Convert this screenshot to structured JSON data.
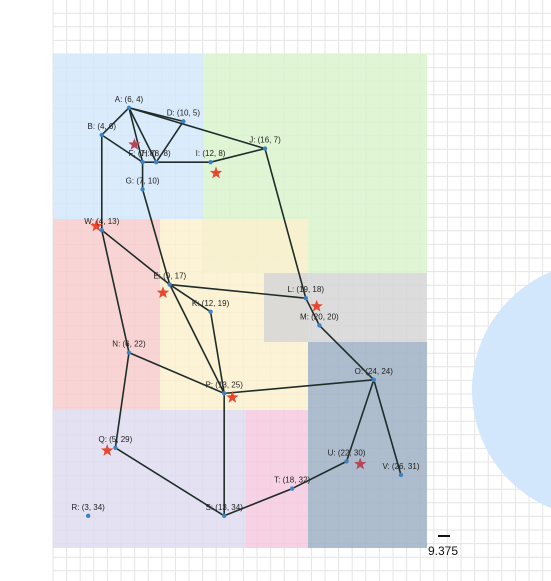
{
  "colors": {
    "grid": "#e4e4e4",
    "edge": "#1f2d2a",
    "node": "#3b82c4",
    "star_red": "#e8482f",
    "star_dark": "#b5475a",
    "region_blue": "#d4e8fb",
    "region_green": "#d9f3cc",
    "region_red": "#f8cccc",
    "region_yellow": "#fbf0cf",
    "region_gray": "#d6d6d6",
    "region_slate": "#9fb2c6",
    "region_purple": "#dedcf0",
    "region_pink": "#f6c9df",
    "circle": "#d2e7fb"
  },
  "scale": {
    "label": "9.375"
  },
  "nodes": [
    {
      "id": "A",
      "label": "A: (6, 4)",
      "x": 6,
      "y": 4
    },
    {
      "id": "B",
      "label": "B: (4, 6)",
      "x": 4,
      "y": 6
    },
    {
      "id": "D",
      "label": "D: (10, 5)",
      "x": 10,
      "y": 5
    },
    {
      "id": "F",
      "label": "F: (7, 8)",
      "x": 7,
      "y": 8
    },
    {
      "id": "H",
      "label": "H: (8, 8)",
      "x": 8,
      "y": 8
    },
    {
      "id": "I",
      "label": "I: (12, 8)",
      "x": 12,
      "y": 8
    },
    {
      "id": "J",
      "label": "J: (16, 7)",
      "x": 16,
      "y": 7
    },
    {
      "id": "G",
      "label": "G: (7, 10)",
      "x": 7,
      "y": 10
    },
    {
      "id": "W",
      "label": "W: (4, 13)",
      "x": 4,
      "y": 13
    },
    {
      "id": "E",
      "label": "E: (9, 17)",
      "x": 9,
      "y": 17
    },
    {
      "id": "K",
      "label": "K: (12, 19)",
      "x": 12,
      "y": 19
    },
    {
      "id": "L",
      "label": "L: (19, 18)",
      "x": 19,
      "y": 18
    },
    {
      "id": "M",
      "label": "M: (20, 20)",
      "x": 20,
      "y": 20
    },
    {
      "id": "N",
      "label": "N: (6, 22)",
      "x": 6,
      "y": 22
    },
    {
      "id": "O",
      "label": "O: (24, 24)",
      "x": 24,
      "y": 24
    },
    {
      "id": "P",
      "label": "P: (13, 25)",
      "x": 13,
      "y": 25
    },
    {
      "id": "Q",
      "label": "Q: (5, 29)",
      "x": 5,
      "y": 29
    },
    {
      "id": "U",
      "label": "U: (22, 30)",
      "x": 22,
      "y": 30
    },
    {
      "id": "V",
      "label": "V: (26, 31)",
      "x": 26,
      "y": 31
    },
    {
      "id": "T",
      "label": "T: (18, 32)",
      "x": 18,
      "y": 32
    },
    {
      "id": "R",
      "label": "R: (3, 34)",
      "x": 3,
      "y": 34
    },
    {
      "id": "S",
      "label": "S: (13, 34)",
      "x": 13,
      "y": 34
    }
  ],
  "edges": [
    [
      "A",
      "B"
    ],
    [
      "A",
      "D"
    ],
    [
      "A",
      "F"
    ],
    [
      "A",
      "H"
    ],
    [
      "A",
      "J"
    ],
    [
      "B",
      "F"
    ],
    [
      "B",
      "W"
    ],
    [
      "D",
      "H"
    ],
    [
      "F",
      "G"
    ],
    [
      "H",
      "I"
    ],
    [
      "I",
      "J"
    ],
    [
      "F",
      "H"
    ],
    [
      "G",
      "E"
    ],
    [
      "J",
      "L"
    ],
    [
      "W",
      "E"
    ],
    [
      "W",
      "N"
    ],
    [
      "E",
      "K"
    ],
    [
      "E",
      "L"
    ],
    [
      "E",
      "P"
    ],
    [
      "K",
      "P"
    ],
    [
      "L",
      "M"
    ],
    [
      "M",
      "O"
    ],
    [
      "N",
      "P"
    ],
    [
      "N",
      "Q"
    ],
    [
      "O",
      "P"
    ],
    [
      "O",
      "U"
    ],
    [
      "O",
      "V"
    ],
    [
      "P",
      "S"
    ],
    [
      "Q",
      "S"
    ],
    [
      "S",
      "T"
    ],
    [
      "T",
      "U"
    ]
  ],
  "stars": [
    {
      "x": 6.4,
      "y": 6.7,
      "color": "star_dark"
    },
    {
      "x": 12.4,
      "y": 8.8,
      "color": "star_red"
    },
    {
      "x": 3.6,
      "y": 12.7,
      "color": "star_red"
    },
    {
      "x": 8.5,
      "y": 17.6,
      "color": "star_red"
    },
    {
      "x": 19.8,
      "y": 18.6,
      "color": "star_red"
    },
    {
      "x": 13.6,
      "y": 25.3,
      "color": "star_red"
    },
    {
      "x": 4.4,
      "y": 29.2,
      "color": "star_red"
    },
    {
      "x": 23.0,
      "y": 30.2,
      "color": "star_dark"
    }
  ]
}
